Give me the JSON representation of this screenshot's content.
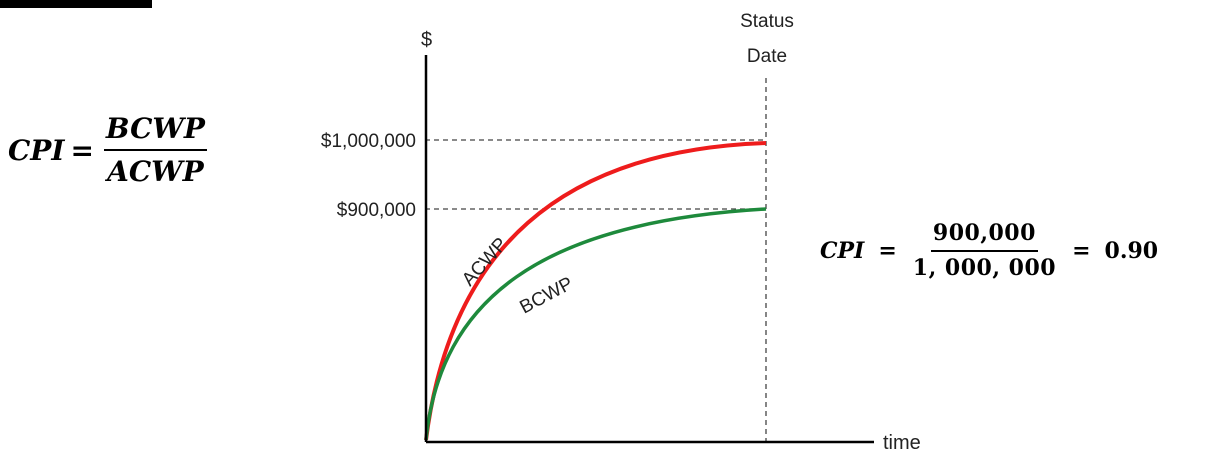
{
  "formula_left": {
    "lhs": "CPI",
    "equals": "=",
    "numerator": "BCWP",
    "denominator": "ACWP"
  },
  "formula_right": {
    "lhs": "CPI",
    "equals_1": "=",
    "numerator": "900,000",
    "denominator": "1, 000, 000",
    "equals_2": "=",
    "result": "0.90"
  },
  "chart": {
    "y_axis_label": "$",
    "x_axis_label": "time",
    "status_date_line1": "Status",
    "status_date_line2": "Date",
    "tick_1m": "$1,000,000",
    "tick_900k": "$900,000",
    "acwp_label": "ACWP",
    "bcwp_label": "BCWP"
  },
  "colors": {
    "acwp": "#ee1c1c",
    "bcwp": "#1e8a3c",
    "axis": "#000000",
    "guide": "#444444"
  },
  "chart_data": {
    "type": "line",
    "xlabel": "time",
    "ylabel": "$",
    "series": [
      {
        "name": "ACWP",
        "value_at_status_date": 1000000
      },
      {
        "name": "BCWP",
        "value_at_status_date": 900000
      }
    ],
    "y_ticks": [
      "$900,000",
      "$1,000,000"
    ],
    "annotations": [
      "Status Date"
    ]
  }
}
